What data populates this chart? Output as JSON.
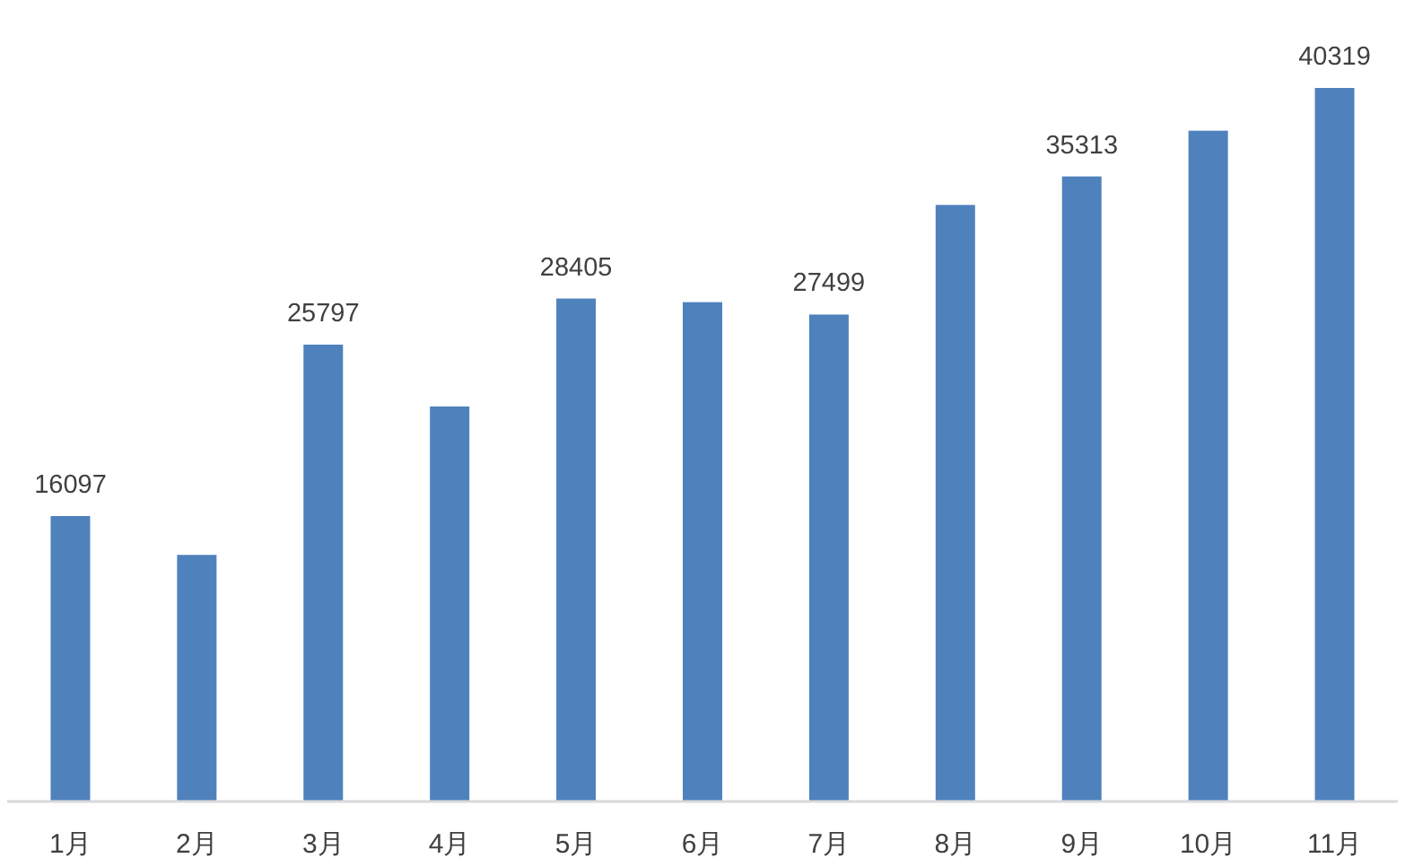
{
  "chart_data": {
    "type": "bar",
    "categories": [
      "1月",
      "2月",
      "3月",
      "4月",
      "5月",
      "6月",
      "7月",
      "8月",
      "9月",
      "10月",
      "11月"
    ],
    "values": [
      16097,
      13900,
      25797,
      22300,
      28405,
      28200,
      27499,
      33700,
      35313,
      37900,
      40319
    ],
    "value_labels": [
      "16097",
      null,
      "25797",
      null,
      "28405",
      null,
      "27499",
      null,
      "35313",
      null,
      "40319"
    ],
    "color": "#4f81bd"
  }
}
